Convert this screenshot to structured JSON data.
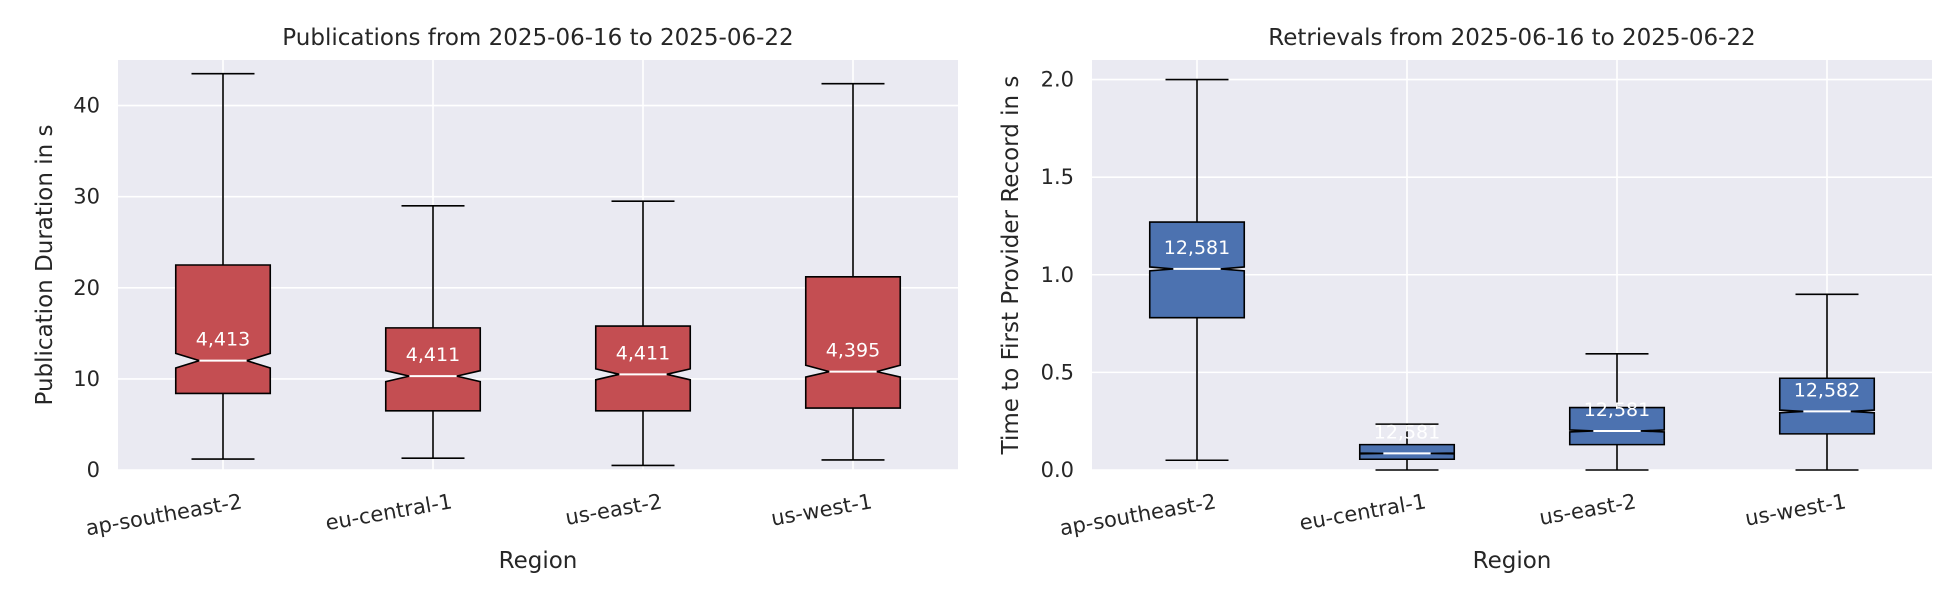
{
  "chart_data": [
    {
      "type": "box",
      "title": "Publications from 2025-06-16 to 2025-06-22",
      "xlabel": "Region",
      "ylabel": "Publication Duration in s",
      "ylim": [
        0,
        45
      ],
      "yticks": [
        0,
        10,
        20,
        30,
        40
      ],
      "notched": true,
      "grid": true,
      "box_color": "#c44e52",
      "categories": [
        "ap-southeast-2",
        "eu-central-1",
        "us-east-2",
        "us-west-1"
      ],
      "boxes": [
        {
          "whisker_low": 1.2,
          "q1": 8.4,
          "median": 12.0,
          "q3": 22.5,
          "whisker_high": 43.5,
          "notch_low": 11.2,
          "notch_high": 12.8,
          "count_label": "4,413"
        },
        {
          "whisker_low": 1.3,
          "q1": 6.5,
          "median": 10.3,
          "q3": 15.6,
          "whisker_high": 29.0,
          "notch_low": 9.7,
          "notch_high": 10.9,
          "count_label": "4,411"
        },
        {
          "whisker_low": 0.5,
          "q1": 6.5,
          "median": 10.5,
          "q3": 15.8,
          "whisker_high": 29.5,
          "notch_low": 9.9,
          "notch_high": 11.1,
          "count_label": "4,411"
        },
        {
          "whisker_low": 1.1,
          "q1": 6.8,
          "median": 10.8,
          "q3": 21.2,
          "whisker_high": 42.4,
          "notch_low": 10.2,
          "notch_high": 11.5,
          "count_label": "4,395"
        }
      ]
    },
    {
      "type": "box",
      "title": "Retrievals from 2025-06-16 to 2025-06-22",
      "xlabel": "Region",
      "ylabel": "Time to First Provider Record in s",
      "ylim": [
        0,
        2.1
      ],
      "yticks": [
        0.0,
        0.5,
        1.0,
        1.5,
        2.0
      ],
      "notched": true,
      "grid": true,
      "box_color": "#4c72b0",
      "categories": [
        "ap-southeast-2",
        "eu-central-1",
        "us-east-2",
        "us-west-1"
      ],
      "boxes": [
        {
          "whisker_low": 0.05,
          "q1": 0.78,
          "median": 1.03,
          "q3": 1.27,
          "whisker_high": 2.0,
          "notch_low": 1.02,
          "notch_high": 1.04,
          "count_label": "12,581"
        },
        {
          "whisker_low": 0.0,
          "q1": 0.055,
          "median": 0.085,
          "q3": 0.13,
          "whisker_high": 0.235,
          "notch_low": 0.083,
          "notch_high": 0.087,
          "count_label": "12,581"
        },
        {
          "whisker_low": 0.0,
          "q1": 0.13,
          "median": 0.2,
          "q3": 0.32,
          "whisker_high": 0.595,
          "notch_low": 0.195,
          "notch_high": 0.205,
          "count_label": "12,581"
        },
        {
          "whisker_low": 0.0,
          "q1": 0.185,
          "median": 0.3,
          "q3": 0.47,
          "whisker_high": 0.9,
          "notch_low": 0.293,
          "notch_high": 0.307,
          "count_label": "12,582"
        }
      ]
    }
  ]
}
